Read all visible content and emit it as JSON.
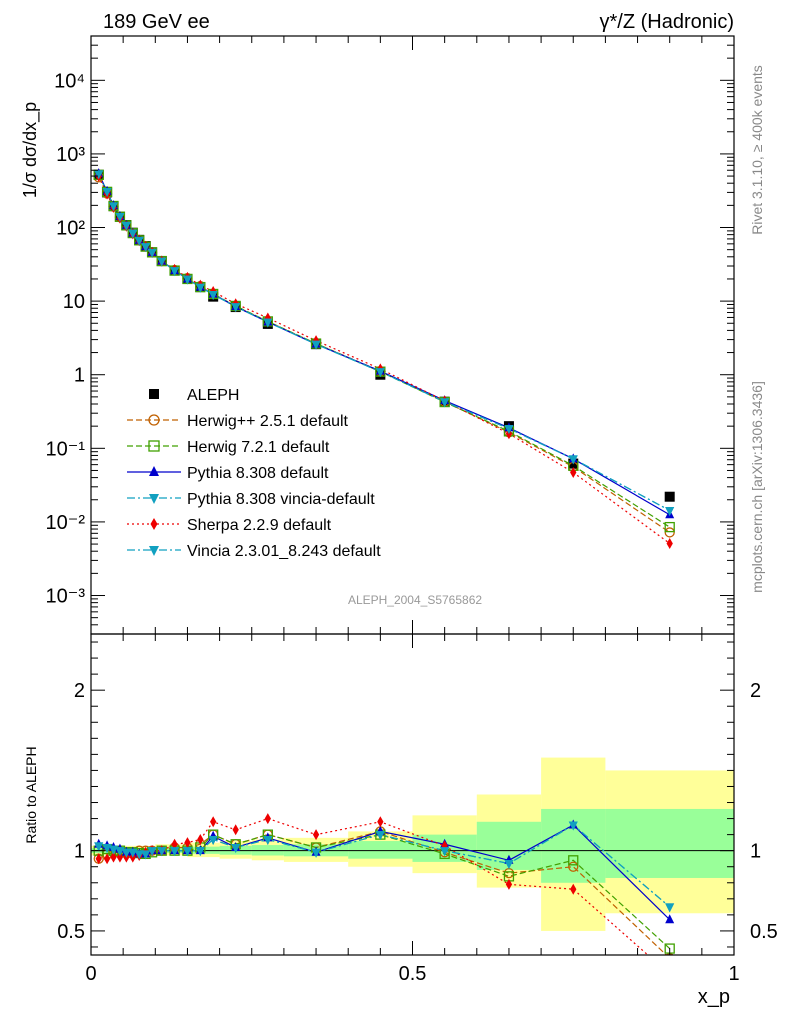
{
  "header": {
    "left_title": "189 GeV ee",
    "right_title": "γ*/Z (Hadronic)"
  },
  "side_labels": {
    "rivet": "Rivet 3.1.10, ≥ 400k events",
    "mcplots": "mcplots.cern.ch [arXiv:1306.3436]"
  },
  "analysis_id": "ALEPH_2004_S5765862",
  "chart_data": [
    {
      "type": "scatter",
      "title": "189 GeV ee",
      "ylabel": "1/σ dσ/dx_p",
      "xlabel": "x_p",
      "xlim": [
        0,
        1
      ],
      "ylim": [
        0.0003,
        40000
      ],
      "yscale": "log",
      "yticks": [
        {
          "value": 0.001,
          "label": "10⁻³"
        },
        {
          "value": 0.01,
          "label": "10⁻²"
        },
        {
          "value": 0.1,
          "label": "10⁻¹"
        },
        {
          "value": 1,
          "label": "1"
        },
        {
          "value": 10,
          "label": "10"
        },
        {
          "value": 100,
          "label": "10²"
        },
        {
          "value": 1000,
          "label": "10³"
        },
        {
          "value": 10000,
          "label": "10⁴"
        }
      ],
      "x": [
        0.012,
        0.025,
        0.035,
        0.045,
        0.055,
        0.065,
        0.075,
        0.085,
        0.095,
        0.11,
        0.13,
        0.15,
        0.17,
        0.19,
        0.225,
        0.275,
        0.35,
        0.45,
        0.55,
        0.65,
        0.75,
        0.9
      ],
      "series": [
        {
          "name": "ALEPH",
          "color": "#000000",
          "marker": "square",
          "values": [
            520,
            300,
            195,
            140,
            108,
            85,
            68,
            56,
            46,
            35,
            26,
            20,
            15.5,
            11.5,
            8.3,
            4.9,
            2.6,
            1.0,
            0.43,
            0.2,
            0.062,
            0.022
          ]
        },
        {
          "name": "Herwig++ 2.5.1 default",
          "color": "#c06000",
          "marker": "circle-open",
          "dash": "6,3",
          "values": [
            480,
            290,
            192,
            138,
            107,
            84,
            68,
            56,
            46,
            35,
            26.5,
            20.5,
            16,
            12.5,
            8.5,
            5.3,
            2.65,
            1.12,
            0.43,
            0.165,
            0.056,
            0.0072
          ]
        },
        {
          "name": "Herwig 7.2.1 default",
          "color": "#40a000",
          "marker": "square-open",
          "dash": "6,3",
          "values": [
            520,
            305,
            196,
            140,
            107,
            84,
            67,
            55,
            46,
            35,
            26,
            20,
            15.5,
            12.5,
            8.6,
            5.3,
            2.65,
            1.1,
            0.425,
            0.17,
            0.058,
            0.0085
          ]
        },
        {
          "name": "Pythia 8.308 default",
          "color": "#0000cc",
          "marker": "triangle-up",
          "dash": "",
          "values": [
            540,
            310,
            198,
            141,
            107,
            84,
            67,
            55,
            46,
            35,
            26,
            20,
            15.5,
            12.5,
            8.4,
            5.2,
            2.6,
            1.12,
            0.445,
            0.19,
            0.072,
            0.0125
          ]
        },
        {
          "name": "Pythia 8.308 vincia-default",
          "color": "#11a0c0",
          "marker": "triangle-down",
          "dash": "8,3,2,3",
          "values": [
            535,
            308,
            197,
            141,
            107,
            84,
            67,
            55,
            46,
            35,
            26,
            20,
            15.5,
            12.3,
            8.4,
            5.2,
            2.6,
            1.1,
            0.43,
            0.185,
            0.072,
            0.0143
          ]
        },
        {
          "name": "Sherpa 2.2.9 default",
          "color": "#ee0000",
          "marker": "diamond",
          "dash": "2,3",
          "values": [
            495,
            285,
            188,
            134,
            104,
            82,
            66,
            55,
            46,
            35,
            27,
            21,
            16.5,
            13.5,
            9.2,
            5.9,
            2.9,
            1.2,
            0.44,
            0.158,
            0.047,
            0.0051
          ]
        },
        {
          "name": "Vincia 2.3.01_8.243 default",
          "color": "#11a0c0",
          "marker": "triangle-down",
          "dash": "8,3,2,3",
          "values": [
            535,
            308,
            197,
            141,
            107,
            84,
            67,
            55,
            46,
            35,
            26,
            20,
            15.5,
            12.3,
            8.4,
            5.2,
            2.6,
            1.1,
            0.43,
            0.185,
            0.072,
            0.0143
          ]
        }
      ],
      "legend_position": "bottom-left"
    },
    {
      "type": "line",
      "ylabel": "Ratio to ALEPH",
      "xlabel": "x_p",
      "xlim": [
        0,
        1
      ],
      "ylim": [
        0.35,
        2.35
      ],
      "yticks": [
        {
          "value": 0.5,
          "label": "0.5"
        },
        {
          "value": 1,
          "label": "1"
        },
        {
          "value": 2,
          "label": "2"
        }
      ],
      "xticks": [
        {
          "value": 0,
          "label": "0"
        },
        {
          "value": 0.5,
          "label": "0.5"
        },
        {
          "value": 1,
          "label": "1"
        }
      ],
      "bands": [
        {
          "x0": 0.0,
          "x1": 0.1,
          "y2lo": 0.97,
          "y2hi": 1.03,
          "y1lo": 0.985,
          "y1hi": 1.015
        },
        {
          "x0": 0.1,
          "x1": 0.15,
          "y2lo": 0.97,
          "y2hi": 1.04,
          "y1lo": 0.985,
          "y1hi": 1.02
        },
        {
          "x0": 0.15,
          "x1": 0.2,
          "y2lo": 0.96,
          "y2hi": 1.05,
          "y1lo": 0.98,
          "y1hi": 1.025
        },
        {
          "x0": 0.2,
          "x1": 0.25,
          "y2lo": 0.95,
          "y2hi": 1.06,
          "y1lo": 0.975,
          "y1hi": 1.03
        },
        {
          "x0": 0.25,
          "x1": 0.3,
          "y2lo": 0.94,
          "y2hi": 1.07,
          "y1lo": 0.97,
          "y1hi": 1.035
        },
        {
          "x0": 0.3,
          "x1": 0.4,
          "y2lo": 0.93,
          "y2hi": 1.08,
          "y1lo": 0.965,
          "y1hi": 1.04
        },
        {
          "x0": 0.4,
          "x1": 0.5,
          "y2lo": 0.9,
          "y2hi": 1.12,
          "y1lo": 0.95,
          "y1hi": 1.06
        },
        {
          "x0": 0.5,
          "x1": 0.6,
          "y2lo": 0.86,
          "y2hi": 1.22,
          "y1lo": 0.93,
          "y1hi": 1.1
        },
        {
          "x0": 0.6,
          "x1": 0.7,
          "y2lo": 0.77,
          "y2hi": 1.35,
          "y1lo": 0.88,
          "y1hi": 1.18
        },
        {
          "x0": 0.7,
          "x1": 0.8,
          "y2lo": 0.5,
          "y2hi": 1.58,
          "y1lo": 0.8,
          "y1hi": 1.26
        },
        {
          "x0": 0.8,
          "x1": 1.0,
          "y2lo": 0.61,
          "y2hi": 1.5,
          "y1lo": 0.83,
          "y1hi": 1.26
        }
      ],
      "series": [
        {
          "name": "Herwig++ 2.5.1 default",
          "color": "#c06000",
          "marker": "circle-open",
          "dash": "6,3",
          "values": [
            0.95,
            0.98,
            0.99,
            0.985,
            0.99,
            0.99,
            1.0,
            1.0,
            1.0,
            1.0,
            1.02,
            1.02,
            1.04,
            1.1,
            1.04,
            1.1,
            1.02,
            1.12,
            0.99,
            0.86,
            0.9,
            0.33
          ]
        },
        {
          "name": "Herwig 7.2.1 default",
          "color": "#40a000",
          "marker": "square-open",
          "dash": "6,3",
          "values": [
            1.0,
            1.01,
            1.0,
            1.0,
            0.99,
            0.99,
            0.985,
            0.98,
            0.99,
            1.0,
            1.0,
            1.0,
            1.02,
            1.1,
            1.04,
            1.1,
            1.02,
            1.1,
            0.98,
            0.84,
            0.94,
            0.39
          ]
        },
        {
          "name": "Pythia 8.308 default",
          "color": "#0000cc",
          "marker": "triangle-up",
          "dash": "",
          "values": [
            1.04,
            1.03,
            1.02,
            1.01,
            0.99,
            0.99,
            0.98,
            0.98,
            1.0,
            1.0,
            1.0,
            1.0,
            1.0,
            1.09,
            1.02,
            1.08,
            0.99,
            1.12,
            1.04,
            0.94,
            1.16,
            0.57
          ]
        },
        {
          "name": "Pythia 8.308 vincia-default",
          "color": "#11a0c0",
          "marker": "triangle-down",
          "dash": "8,3,2,3",
          "values": [
            1.03,
            1.02,
            1.01,
            1.0,
            0.99,
            0.99,
            0.98,
            0.98,
            1.0,
            1.0,
            1.0,
            1.0,
            1.0,
            1.07,
            1.02,
            1.07,
            0.99,
            1.1,
            1.0,
            0.92,
            1.16,
            0.65
          ]
        },
        {
          "name": "Sherpa 2.2.9 default",
          "color": "#ee0000",
          "marker": "diamond",
          "dash": "2,3",
          "values": [
            0.95,
            0.95,
            0.96,
            0.96,
            0.96,
            0.96,
            0.97,
            0.99,
            1.0,
            1.0,
            1.04,
            1.05,
            1.07,
            1.18,
            1.13,
            1.2,
            1.1,
            1.18,
            1.03,
            0.79,
            0.76,
            0.23
          ]
        },
        {
          "name": "Vincia 2.3.01_8.243 default",
          "color": "#11a0c0",
          "marker": "triangle-down",
          "dash": "8,3,2,3",
          "values": [
            1.03,
            1.02,
            1.01,
            1.0,
            0.99,
            0.99,
            0.98,
            0.98,
            1.0,
            1.0,
            1.0,
            1.0,
            1.0,
            1.07,
            1.02,
            1.07,
            0.99,
            1.1,
            1.0,
            0.92,
            1.16,
            0.65
          ]
        }
      ]
    }
  ]
}
